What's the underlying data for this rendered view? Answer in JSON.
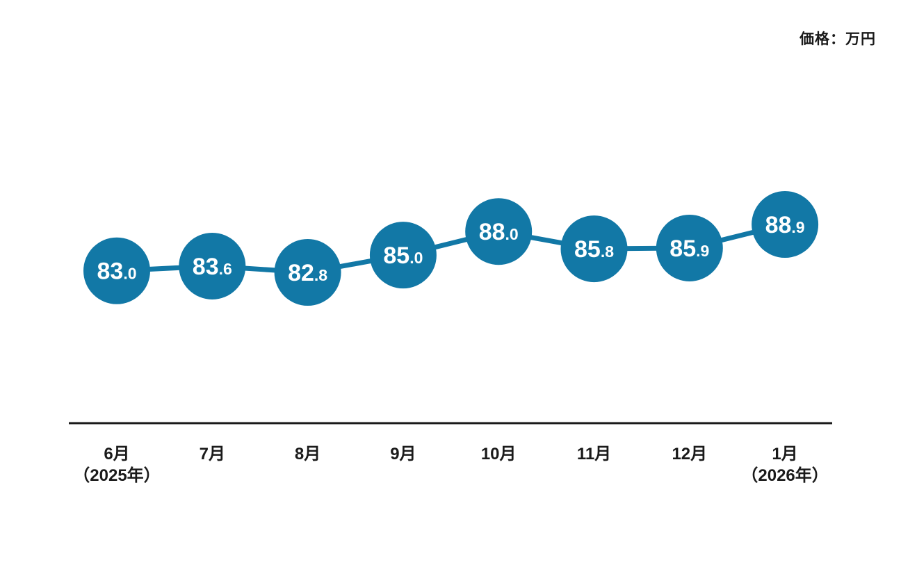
{
  "header": {
    "unit_label": "価格：万円"
  },
  "colors": {
    "accent": "#1278A6",
    "axis": "#1a1a1a",
    "label_text": "#1a1a1a",
    "marker_label": "#ffffff"
  },
  "chart_data": {
    "type": "line",
    "title": "",
    "ylabel": "価格（万円）",
    "xlabel": "",
    "categories": [
      {
        "month": "6月",
        "year": "（2025年）"
      },
      {
        "month": "7月",
        "year": ""
      },
      {
        "month": "8月",
        "year": ""
      },
      {
        "month": "9月",
        "year": ""
      },
      {
        "month": "10月",
        "year": ""
      },
      {
        "month": "11月",
        "year": ""
      },
      {
        "month": "12月",
        "year": ""
      },
      {
        "month": "1月",
        "year": "（2026年）"
      }
    ],
    "values": [
      83.0,
      83.6,
      82.8,
      85.0,
      88.0,
      85.8,
      85.9,
      88.9
    ],
    "ylim": [
      80,
      92
    ],
    "grid": false,
    "legend": "none",
    "marker": "large-circle-with-value"
  }
}
